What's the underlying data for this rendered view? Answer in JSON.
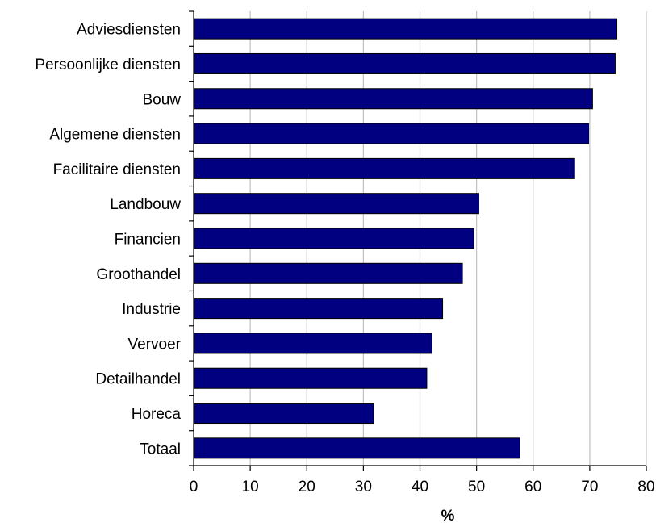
{
  "chart_data": {
    "type": "bar",
    "orientation": "horizontal",
    "categories": [
      "Adviesdiensten",
      "Persoonlijke diensten",
      "Bouw",
      "Algemene diensten",
      "Facilitaire diensten",
      "Landbouw",
      "Financien",
      "Groothandel",
      "Industrie",
      "Vervoer",
      "Detailhandel",
      "Horeca",
      "Totaal"
    ],
    "values": [
      74.8,
      74.5,
      70.5,
      69.8,
      67.2,
      50.4,
      49.5,
      47.5,
      44.0,
      42.1,
      41.2,
      31.8,
      57.6
    ],
    "title": "",
    "xlabel": "%",
    "ylabel": "",
    "xlim": [
      0,
      80
    ],
    "xticks": [
      "0",
      "10",
      "20",
      "30",
      "40",
      "50",
      "60",
      "70",
      "80"
    ],
    "grid": "vertical",
    "legend": "none",
    "colors": {
      "bar": "#000080",
      "bar_edge": "#000000",
      "grid": "#c0c0c0",
      "axis": "#000000"
    }
  }
}
